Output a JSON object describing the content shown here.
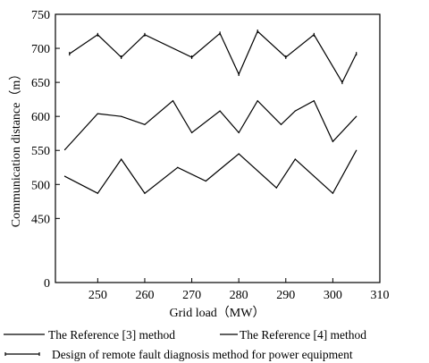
{
  "chart_data": {
    "type": "line",
    "title": "",
    "xlabel": "Grid load（MW）",
    "ylabel": "Communication distance（m）",
    "xlim": [
      241,
      310
    ],
    "ylim": [
      0,
      750
    ],
    "x_ticks": [
      250,
      260,
      270,
      280,
      290,
      300,
      310
    ],
    "y_ticks": [
      0,
      450,
      500,
      550,
      600,
      650,
      700,
      750
    ],
    "axis_break": {
      "from": 0,
      "to": 400
    },
    "grid": false,
    "legend_position": "bottom",
    "series": [
      {
        "name": "The Reference [3] method",
        "marker": "none",
        "x": [
          243,
          250,
          255,
          260,
          266,
          270,
          276,
          280,
          284,
          289,
          292,
          296,
          300,
          305
        ],
        "y": [
          551,
          604,
          600,
          588,
          623,
          576,
          608,
          576,
          623,
          588,
          608,
          623,
          563,
          600
        ]
      },
      {
        "name": "The Reference [4] method",
        "marker": "none",
        "x": [
          243,
          250,
          255,
          260,
          267,
          273,
          280,
          288,
          292,
          300,
          305
        ],
        "y": [
          512,
          487,
          537,
          487,
          525,
          505,
          545,
          495,
          537,
          487,
          550
        ]
      },
      {
        "name": "Design of remote fault diagnosis method for power equipment",
        "marker": "tick",
        "x": [
          244,
          250,
          255,
          260,
          270,
          276,
          280,
          284,
          290,
          296,
          302,
          305
        ],
        "y": [
          692,
          720,
          687,
          720,
          687,
          722,
          662,
          725,
          687,
          720,
          650,
          692
        ]
      }
    ]
  }
}
